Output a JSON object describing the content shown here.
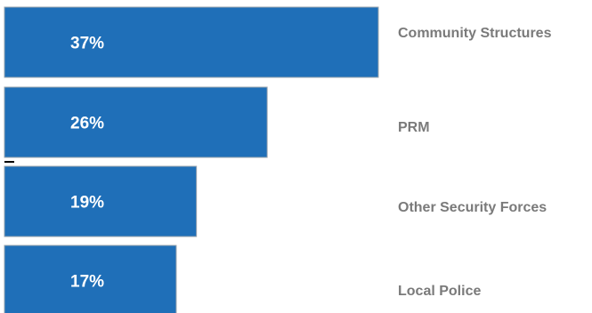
{
  "chart_data": {
    "type": "bar",
    "orientation": "horizontal",
    "categories": [
      "Community Structures",
      "PRM",
      "Other Security Forces",
      "Local Police"
    ],
    "values": [
      37,
      26,
      19,
      17
    ],
    "value_labels": [
      "37%",
      "26%",
      "19%",
      "17%"
    ],
    "unit": "%",
    "title": "",
    "xlabel": "",
    "ylabel": "",
    "grid": false,
    "legend": "none",
    "colors": {
      "bar": "#1f6fb8",
      "bar_border": "#9aa4ae",
      "value_text": "#ffffff",
      "category_text": "#7a7a7a"
    }
  }
}
